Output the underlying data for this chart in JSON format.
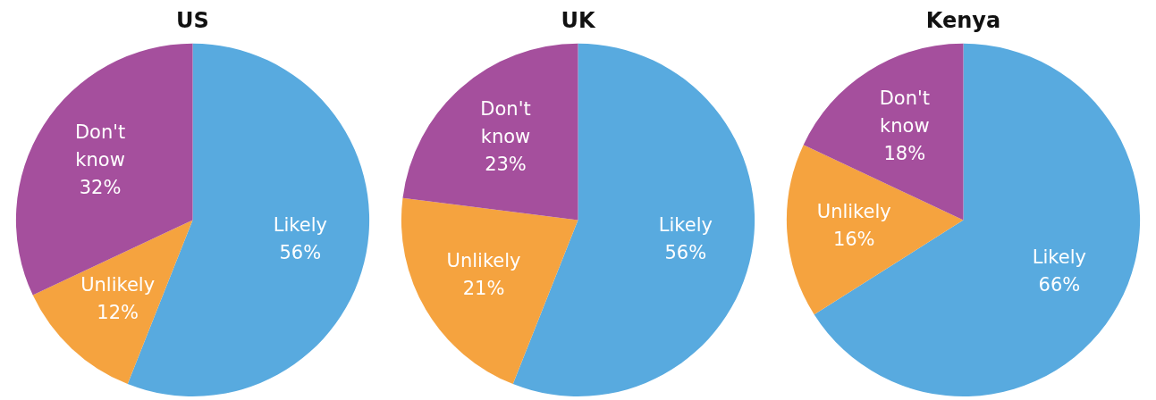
{
  "chart_data": [
    {
      "type": "pie",
      "title": "US",
      "categories": [
        "Likely",
        "Unlikely",
        "Don't know"
      ],
      "values": [
        56,
        12,
        32
      ],
      "colors": [
        "#58aadf",
        "#f5a33f",
        "#a54f9d"
      ],
      "value_labels": [
        "56%",
        "12%",
        "32%"
      ]
    },
    {
      "type": "pie",
      "title": "UK",
      "categories": [
        "Likely",
        "Unlikely",
        "Don't know"
      ],
      "values": [
        56,
        21,
        23
      ],
      "colors": [
        "#58aadf",
        "#f5a33f",
        "#a54f9d"
      ],
      "value_labels": [
        "56%",
        "21%",
        "23%"
      ]
    },
    {
      "type": "pie",
      "title": "Kenya",
      "categories": [
        "Likely",
        "Unlikely",
        "Don't know"
      ],
      "values": [
        66,
        16,
        18
      ],
      "colors": [
        "#58aadf",
        "#f5a33f",
        "#a54f9d"
      ],
      "value_labels": [
        "66%",
        "16%",
        "18%"
      ]
    }
  ]
}
